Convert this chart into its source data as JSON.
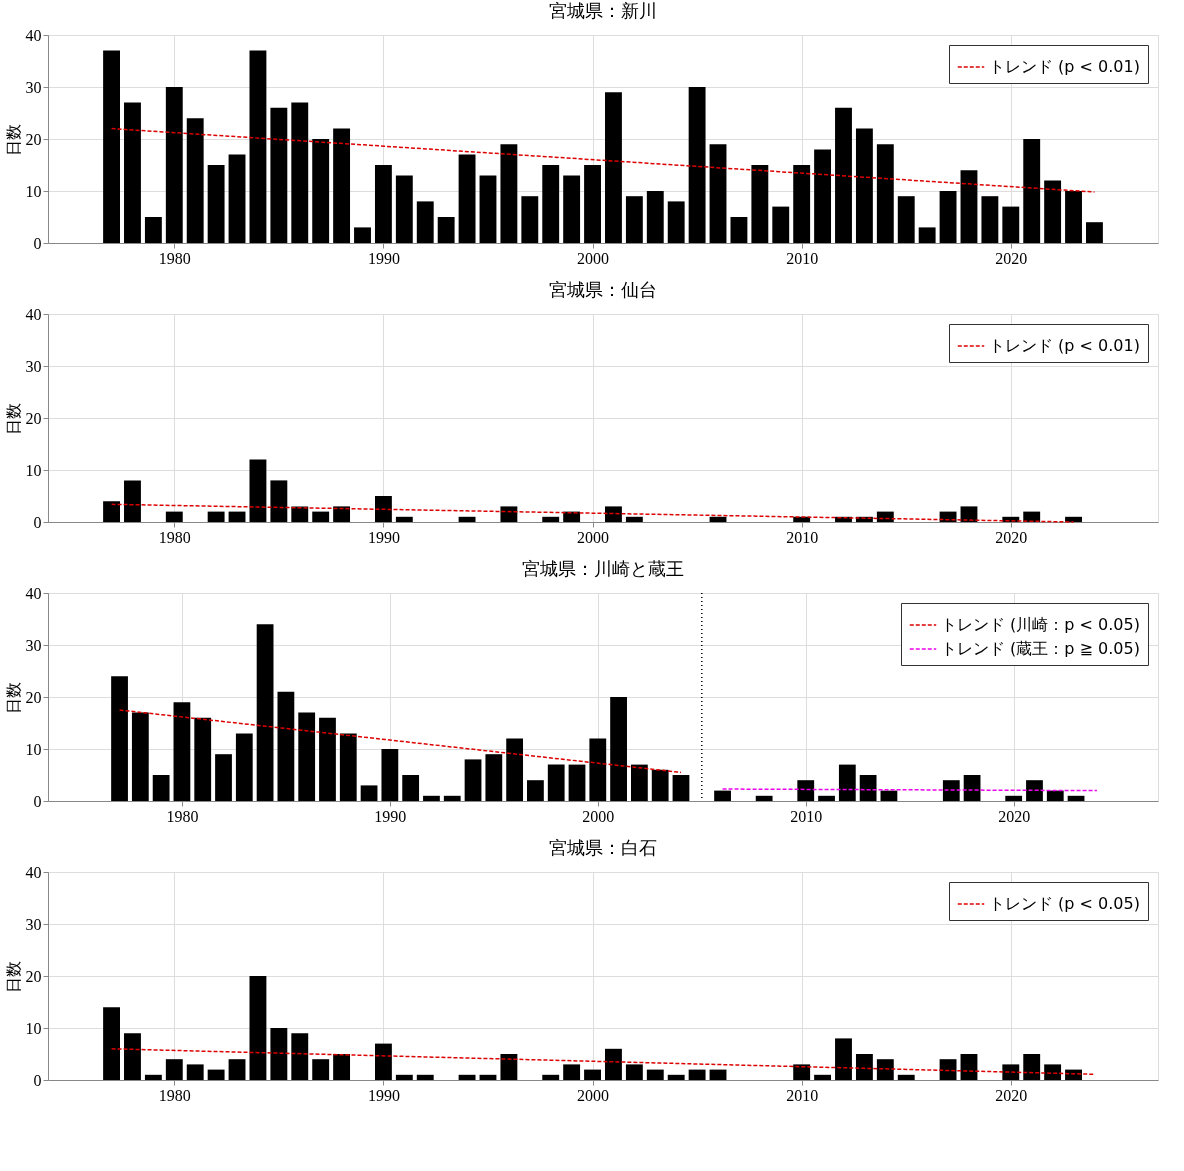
{
  "chart_data": [
    {
      "type": "bar",
      "title": "宮城県：新川",
      "ylabel": "日数",
      "xlim": [
        1974.2,
        2026.8
      ],
      "xticks": [
        1980,
        1990,
        2000,
        2010,
        2020
      ],
      "ylim": [
        0,
        40
      ],
      "yticks": [
        0,
        10,
        20,
        30,
        40
      ],
      "grid": true,
      "legend": "top right",
      "x": [
        1977,
        1978,
        1979,
        1980,
        1981,
        1982,
        1983,
        1984,
        1985,
        1986,
        1987,
        1988,
        1989,
        1990,
        1991,
        1992,
        1993,
        1994,
        1995,
        1996,
        1997,
        1998,
        1999,
        2000,
        2001,
        2002,
        2003,
        2004,
        2005,
        2006,
        2007,
        2008,
        2009,
        2010,
        2011,
        2012,
        2013,
        2014,
        2015,
        2016,
        2017,
        2018,
        2019,
        2020,
        2021,
        2022,
        2023,
        2024
      ],
      "series": [
        {
          "color": "#000000",
          "values": [
            37,
            27,
            5,
            30,
            24,
            15,
            17,
            37,
            26,
            27,
            20,
            22,
            3,
            15,
            13,
            8,
            5,
            17,
            13,
            19,
            9,
            15,
            13,
            15,
            29,
            9,
            10,
            8,
            30,
            19,
            5,
            15,
            7,
            15,
            18,
            26,
            22,
            19,
            9,
            3,
            10,
            14,
            9,
            7,
            20,
            12,
            10,
            4
          ]
        },
        {
          "type": "line",
          "name": "トレンド (p < 0.01)",
          "color": "#dd0000",
          "line_style": "dashed",
          "x": [
            1977,
            2024
          ],
          "values": [
            22,
            9.8
          ]
        }
      ]
    },
    {
      "type": "bar",
      "title": "宮城県：仙台",
      "ylabel": "日数",
      "xlim": [
        1974.2,
        2026.8
      ],
      "xticks": [
        1980,
        1990,
        2000,
        2010,
        2020
      ],
      "ylim": [
        0,
        40
      ],
      "yticks": [
        0,
        10,
        20,
        30,
        40
      ],
      "grid": true,
      "legend": "top right",
      "x": [
        1977,
        1978,
        1979,
        1980,
        1981,
        1982,
        1983,
        1984,
        1985,
        1986,
        1987,
        1988,
        1989,
        1990,
        1991,
        1992,
        1993,
        1994,
        1995,
        1996,
        1997,
        1998,
        1999,
        2000,
        2001,
        2002,
        2003,
        2004,
        2005,
        2006,
        2007,
        2008,
        2009,
        2010,
        2011,
        2012,
        2013,
        2014,
        2015,
        2016,
        2017,
        2018,
        2019,
        2020,
        2021,
        2022,
        2023,
        2024
      ],
      "series": [
        {
          "color": "#000000",
          "values": [
            4,
            8,
            0,
            2,
            0,
            2,
            2,
            12,
            8,
            3,
            2,
            3,
            0,
            5,
            1,
            0,
            0,
            1,
            0,
            3,
            0,
            1,
            2,
            0,
            3,
            1,
            0,
            0,
            0,
            1,
            0,
            0,
            0,
            1,
            0,
            1,
            1,
            2,
            0,
            0,
            2,
            3,
            0,
            1,
            2,
            0,
            1,
            0
          ]
        },
        {
          "type": "line",
          "name": "トレンド (p < 0.01)",
          "color": "#dd0000",
          "line_style": "dashed",
          "x": [
            1977,
            2023
          ],
          "values": [
            3.4,
            0
          ]
        }
      ]
    },
    {
      "type": "bar",
      "title": "宮城県：川崎と蔵王",
      "ylabel": "日数",
      "xlim": [
        1973.8,
        2026.7
      ],
      "xticks": [
        1980,
        1990,
        2000,
        2010,
        2020
      ],
      "ylim": [
        0,
        40
      ],
      "yticks": [
        0,
        10,
        20,
        30,
        40
      ],
      "grid": true,
      "legend": "top right",
      "x": [
        1977,
        1978,
        1979,
        1980,
        1981,
        1982,
        1983,
        1984,
        1985,
        1986,
        1987,
        1988,
        1989,
        1990,
        1991,
        1992,
        1993,
        1994,
        1995,
        1996,
        1997,
        1998,
        1999,
        2000,
        2001,
        2002,
        2003,
        2004,
        2005,
        2006,
        2007,
        2008,
        2009,
        2010,
        2011,
        2012,
        2013,
        2014,
        2015,
        2016,
        2017,
        2018,
        2019,
        2020,
        2021,
        2022,
        2023
      ],
      "series": [
        {
          "color": "#000000",
          "values": [
            24,
            17,
            5,
            19,
            16,
            9,
            13,
            34,
            21,
            17,
            16,
            13,
            3,
            10,
            5,
            1,
            1,
            8,
            9,
            12,
            4,
            7,
            7,
            12,
            20,
            7,
            6,
            5,
            0,
            2,
            0,
            1,
            0,
            4,
            1,
            7,
            5,
            2,
            0,
            0,
            4,
            5,
            0,
            1,
            4,
            2,
            1
          ]
        },
        {
          "type": "line",
          "name": "トレンド (川崎：p < 0.05)",
          "color": "#dd0000",
          "line_style": "dashed",
          "x": [
            1977,
            2004
          ],
          "values": [
            17.5,
            5.5
          ]
        },
        {
          "type": "line",
          "name": "トレンド (蔵王：p ≧ 0.05)",
          "color": "#ee00ee",
          "line_style": "dashed",
          "x": [
            2006,
            2024
          ],
          "values": [
            2.3,
            2.0
          ]
        }
      ],
      "ref_lines": [
        {
          "axis": "x",
          "value": 2005,
          "color": "#000000",
          "line_style": "dotted"
        }
      ]
    },
    {
      "type": "bar",
      "title": "宮城県：白石",
      "ylabel": "日数",
      "xlim": [
        1974.2,
        2026.8
      ],
      "xticks": [
        1980,
        1990,
        2000,
        2010,
        2020
      ],
      "ylim": [
        0,
        40
      ],
      "yticks": [
        0,
        10,
        20,
        30,
        40
      ],
      "grid": true,
      "legend": "top right",
      "x": [
        1977,
        1978,
        1979,
        1980,
        1981,
        1982,
        1983,
        1984,
        1985,
        1986,
        1987,
        1988,
        1989,
        1990,
        1991,
        1992,
        1993,
        1994,
        1995,
        1996,
        1997,
        1998,
        1999,
        2000,
        2001,
        2002,
        2003,
        2004,
        2005,
        2006,
        2007,
        2008,
        2009,
        2010,
        2011,
        2012,
        2013,
        2014,
        2015,
        2016,
        2017,
        2018,
        2019,
        2020,
        2021,
        2022,
        2023,
        2024
      ],
      "series": [
        {
          "color": "#000000",
          "values": [
            14,
            9,
            1,
            4,
            3,
            2,
            4,
            20,
            10,
            9,
            4,
            5,
            0,
            7,
            1,
            1,
            0,
            1,
            1,
            5,
            0,
            1,
            3,
            2,
            6,
            3,
            2,
            1,
            2,
            2,
            0,
            0,
            0,
            3,
            1,
            8,
            5,
            4,
            1,
            0,
            4,
            5,
            0,
            3,
            5,
            3,
            2,
            0
          ]
        },
        {
          "type": "line",
          "name": "トレンド (p < 0.05)",
          "color": "#dd0000",
          "line_style": "dashed",
          "x": [
            1977,
            2024
          ],
          "values": [
            6,
            1.1
          ]
        }
      ]
    }
  ]
}
